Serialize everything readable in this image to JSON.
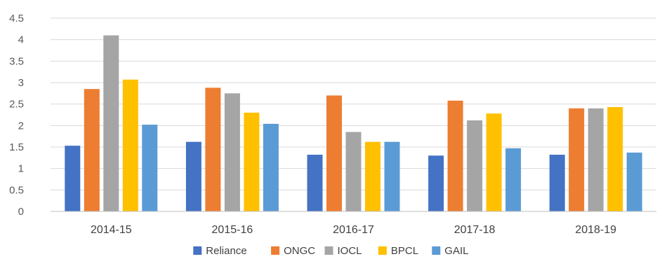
{
  "chart_data": {
    "type": "bar",
    "title": "",
    "xlabel": "",
    "ylabel": "",
    "ylim": [
      0,
      4.5
    ],
    "ytick_step": 0.5,
    "yticks": [
      "0",
      "0.5",
      "1",
      "1.5",
      "2",
      "2.5",
      "3",
      "3.5",
      "4",
      "4.5"
    ],
    "grid": true,
    "legend_position": "bottom",
    "categories": [
      "2014-15",
      "2015-16",
      "2016-17",
      "2017-18",
      "2018-19"
    ],
    "series": [
      {
        "name": "Reliance",
        "color": "#4472c4",
        "values": [
          1.53,
          1.62,
          1.32,
          1.3,
          1.32
        ]
      },
      {
        "name": "ONGC",
        "color": "#ed7d31",
        "values": [
          2.85,
          2.88,
          2.7,
          2.58,
          2.4
        ]
      },
      {
        "name": "IOCL",
        "color": "#a5a5a5",
        "values": [
          4.1,
          2.75,
          1.85,
          2.12,
          2.4
        ]
      },
      {
        "name": "BPCL",
        "color": "#ffc000",
        "values": [
          3.07,
          2.3,
          1.62,
          2.28,
          2.43
        ]
      },
      {
        "name": "GAIL",
        "color": "#5b9bd5",
        "values": [
          2.02,
          2.04,
          1.62,
          1.47,
          1.37
        ]
      }
    ]
  }
}
